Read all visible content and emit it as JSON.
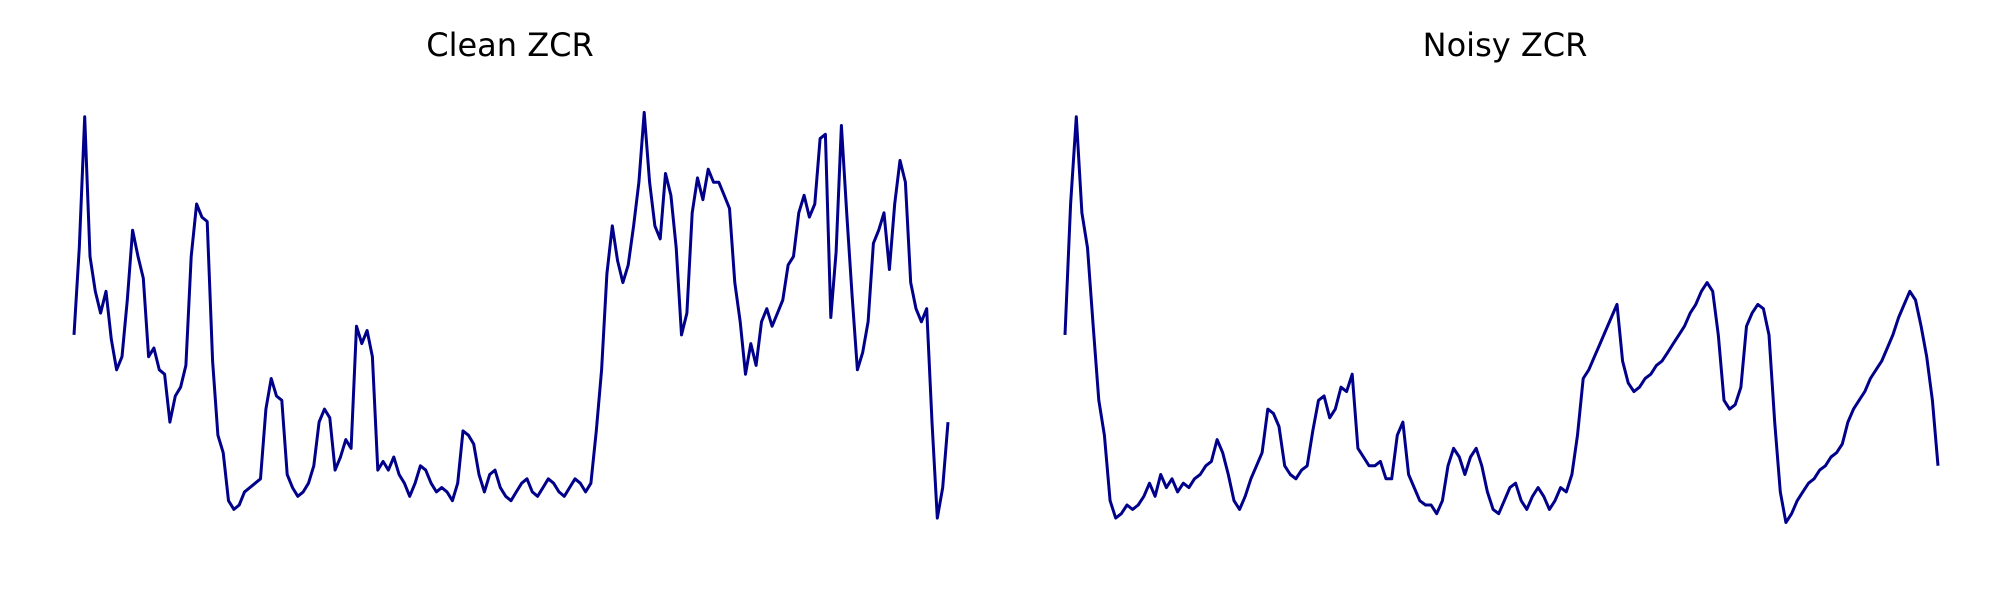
{
  "chart_data": [
    {
      "type": "line",
      "title": "Clean ZCR",
      "xlabel": "",
      "ylabel": "",
      "axes_visible": false,
      "grid": false,
      "color": "#00008b",
      "y": [
        0.5,
        0.7,
        1.0,
        0.68,
        0.6,
        0.55,
        0.6,
        0.49,
        0.42,
        0.45,
        0.58,
        0.74,
        0.68,
        0.63,
        0.45,
        0.47,
        0.42,
        0.41,
        0.3,
        0.36,
        0.38,
        0.43,
        0.68,
        0.8,
        0.77,
        0.76,
        0.44,
        0.27,
        0.23,
        0.12,
        0.1,
        0.11,
        0.14,
        0.15,
        0.16,
        0.17,
        0.33,
        0.4,
        0.36,
        0.35,
        0.18,
        0.15,
        0.13,
        0.14,
        0.16,
        0.2,
        0.3,
        0.33,
        0.31,
        0.19,
        0.22,
        0.26,
        0.24,
        0.52,
        0.48,
        0.51,
        0.45,
        0.19,
        0.21,
        0.19,
        0.22,
        0.18,
        0.16,
        0.13,
        0.16,
        0.2,
        0.19,
        0.16,
        0.14,
        0.15,
        0.14,
        0.12,
        0.16,
        0.28,
        0.27,
        0.25,
        0.18,
        0.14,
        0.18,
        0.19,
        0.15,
        0.13,
        0.12,
        0.14,
        0.16,
        0.17,
        0.14,
        0.13,
        0.15,
        0.17,
        0.16,
        0.14,
        0.13,
        0.15,
        0.17,
        0.16,
        0.14,
        0.16,
        0.28,
        0.42,
        0.64,
        0.75,
        0.67,
        0.62,
        0.66,
        0.75,
        0.85,
        1.01,
        0.85,
        0.75,
        0.72,
        0.87,
        0.82,
        0.7,
        0.5,
        0.55,
        0.78,
        0.86,
        0.81,
        0.88,
        0.85,
        0.85,
        0.82,
        0.79,
        0.62,
        0.53,
        0.41,
        0.48,
        0.43,
        0.53,
        0.56,
        0.52,
        0.55,
        0.58,
        0.66,
        0.68,
        0.78,
        0.82,
        0.77,
        0.8,
        0.95,
        0.96,
        0.54,
        0.69,
        0.98,
        0.78,
        0.59,
        0.42,
        0.46,
        0.53,
        0.71,
        0.74,
        0.78,
        0.65,
        0.8,
        0.9,
        0.85,
        0.62,
        0.56,
        0.53,
        0.56,
        0.3,
        0.08,
        0.15,
        0.3
      ],
      "ylim": [
        0,
        1.05
      ]
    },
    {
      "type": "line",
      "title": "Noisy ZCR",
      "xlabel": "",
      "ylabel": "",
      "axes_visible": false,
      "grid": false,
      "color": "#00008b",
      "y": [
        0.5,
        0.8,
        1.0,
        0.78,
        0.7,
        0.52,
        0.35,
        0.27,
        0.12,
        0.08,
        0.09,
        0.11,
        0.1,
        0.11,
        0.13,
        0.16,
        0.13,
        0.18,
        0.15,
        0.17,
        0.14,
        0.16,
        0.15,
        0.17,
        0.18,
        0.2,
        0.21,
        0.26,
        0.23,
        0.18,
        0.12,
        0.1,
        0.13,
        0.17,
        0.2,
        0.23,
        0.33,
        0.32,
        0.29,
        0.2,
        0.18,
        0.17,
        0.19,
        0.2,
        0.28,
        0.35,
        0.36,
        0.31,
        0.33,
        0.38,
        0.37,
        0.41,
        0.24,
        0.22,
        0.2,
        0.2,
        0.21,
        0.17,
        0.17,
        0.27,
        0.3,
        0.18,
        0.15,
        0.12,
        0.11,
        0.11,
        0.09,
        0.12,
        0.2,
        0.24,
        0.22,
        0.18,
        0.22,
        0.24,
        0.2,
        0.14,
        0.1,
        0.09,
        0.12,
        0.15,
        0.16,
        0.12,
        0.1,
        0.13,
        0.15,
        0.13,
        0.1,
        0.12,
        0.15,
        0.14,
        0.18,
        0.27,
        0.4,
        0.42,
        0.45,
        0.48,
        0.51,
        0.54,
        0.57,
        0.44,
        0.39,
        0.37,
        0.38,
        0.4,
        0.41,
        0.43,
        0.44,
        0.46,
        0.48,
        0.5,
        0.52,
        0.55,
        0.57,
        0.6,
        0.62,
        0.6,
        0.5,
        0.35,
        0.33,
        0.34,
        0.38,
        0.52,
        0.55,
        0.57,
        0.56,
        0.5,
        0.3,
        0.14,
        0.07,
        0.09,
        0.12,
        0.14,
        0.16,
        0.17,
        0.19,
        0.2,
        0.22,
        0.23,
        0.25,
        0.3,
        0.33,
        0.35,
        0.37,
        0.4,
        0.42,
        0.44,
        0.47,
        0.5,
        0.54,
        0.57,
        0.6,
        0.58,
        0.52,
        0.45,
        0.35,
        0.2
      ],
      "ylim": [
        0,
        1.05
      ]
    }
  ]
}
